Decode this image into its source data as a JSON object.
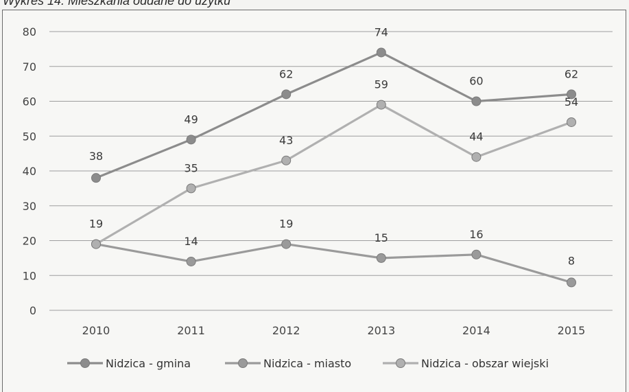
{
  "caption": "Wykres 14. Mieszkania oddane do użytku",
  "chart_data": {
    "type": "line",
    "title": "Wykres 14. Mieszkania oddane do użytku",
    "xlabel": "",
    "ylabel": "",
    "categories": [
      "2010",
      "2011",
      "2012",
      "2013",
      "2014",
      "2015"
    ],
    "ylim": [
      0,
      80
    ],
    "yticks": [
      "0",
      "10",
      "20",
      "30",
      "40",
      "50",
      "60",
      "70",
      "80"
    ],
    "grid": "horizontal",
    "legend_position": "bottom",
    "series": [
      {
        "name": "Nidzica - gmina",
        "values": [
          38,
          49,
          62,
          74,
          60,
          62
        ],
        "color": "#8c8c8c"
      },
      {
        "name": "Nidzica - miasto",
        "values": [
          19,
          14,
          19,
          15,
          16,
          8
        ],
        "color": "#9a9a9a"
      },
      {
        "name": "Nidzica - obszar wiejski",
        "values": [
          19,
          35,
          43,
          59,
          44,
          54
        ],
        "color": "#b0b0b0"
      }
    ]
  }
}
